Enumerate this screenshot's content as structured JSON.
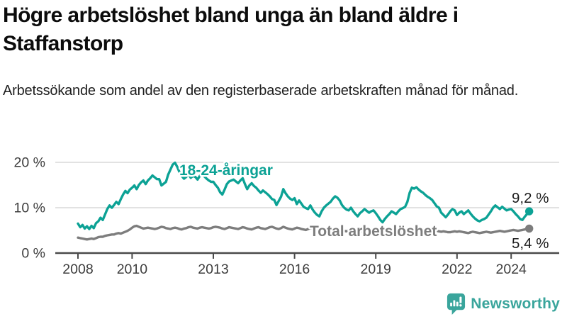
{
  "header": {
    "title": "Högre arbetslöshet bland unga än bland äldre i Staffanstorp",
    "subtitle": "Arbetssökande som andel av den registerbaserade arbetskraften månad för månad."
  },
  "chart_data": {
    "type": "line",
    "title": "Högre arbetslöshet bland unga än bland äldre i Staffanstorp",
    "subtitle": "Arbetssökande som andel av den registerbaserade arbetskraften månad för månad.",
    "unit": "%",
    "x_start_month": "2008-01",
    "x_end_month": "2024-09",
    "x_step": "1 month",
    "x_ticks": [
      "2008",
      "2010",
      "2013",
      "2016",
      "2019",
      "2022",
      "2024"
    ],
    "y_ticks": [
      {
        "value": 0,
        "label": "0 %"
      },
      {
        "value": 10,
        "label": "10 %"
      },
      {
        "value": 20,
        "label": "20 %"
      }
    ],
    "ylim": [
      0,
      21.5
    ],
    "grid": true,
    "legend_position": "inline-labels",
    "colors": {
      "youth": "#0ca295",
      "total": "#7d7d7d",
      "axis": "#4a4a4a",
      "tick_label": "#3d3d3d",
      "gridline": "#d9d9d9",
      "value_label": "#1b1b1b"
    },
    "series": [
      {
        "name": "18-24-åringar",
        "color": "#0ca295",
        "end_label": "9,2 %",
        "end_value": 9.2,
        "values": [
          6.5,
          5.7,
          6.2,
          5.4,
          5.9,
          5.3,
          6.0,
          5.5,
          6.6,
          7.0,
          7.8,
          7.3,
          8.5,
          9.7,
          10.5,
          10.0,
          10.6,
          11.3,
          10.8,
          11.9,
          12.9,
          13.7,
          13.2,
          14.0,
          14.4,
          14.9,
          14.1,
          15.0,
          15.6,
          16.0,
          15.2,
          16.0,
          16.5,
          17.1,
          16.7,
          16.3,
          16.3,
          14.9,
          15.3,
          15.7,
          17.3,
          18.4,
          19.5,
          19.9,
          19.0,
          17.8,
          17.0,
          16.4,
          16.8,
          17.4,
          16.6,
          17.0,
          16.8,
          16.2,
          17.0,
          17.5,
          16.9,
          16.4,
          16.0,
          15.7,
          15.7,
          15.0,
          14.4,
          13.4,
          12.9,
          14.0,
          15.2,
          15.8,
          16.0,
          16.2,
          15.8,
          15.4,
          16.0,
          16.5,
          15.2,
          14.1,
          14.9,
          15.4,
          14.8,
          14.4,
          13.8,
          13.3,
          13.8,
          13.4,
          13.0,
          12.5,
          11.9,
          11.7,
          10.6,
          11.5,
          12.4,
          14.1,
          13.2,
          12.5,
          12.0,
          11.7,
          12.1,
          10.8,
          11.6,
          10.9,
          10.2,
          9.9,
          9.7,
          10.5,
          9.6,
          8.9,
          8.4,
          8.1,
          9.2,
          10.0,
          10.5,
          10.9,
          11.3,
          12.0,
          12.5,
          12.2,
          11.6,
          10.6,
          10.0,
          9.6,
          9.4,
          10.0,
          9.2,
          8.6,
          8.1,
          8.8,
          9.2,
          9.7,
          9.3,
          8.9,
          9.2,
          9.4,
          8.8,
          8.1,
          7.3,
          6.8,
          7.5,
          8.1,
          8.6,
          9.2,
          8.9,
          8.6,
          9.2,
          9.7,
          9.9,
          10.2,
          11.3,
          13.3,
          14.4,
          14.2,
          14.5,
          14.0,
          13.6,
          13.3,
          12.8,
          12.4,
          12.1,
          11.7,
          11.0,
          10.3,
          10.0,
          8.9,
          8.4,
          7.9,
          8.5,
          9.2,
          9.7,
          9.4,
          8.4,
          8.9,
          9.2,
          8.6,
          9.0,
          9.4,
          8.7,
          8.1,
          7.6,
          7.2,
          7.0,
          7.3,
          7.5,
          7.8,
          8.5,
          9.2,
          10.0,
          10.5,
          10.1,
          9.7,
          10.2,
          9.8,
          9.4,
          9.6,
          9.7,
          9.2,
          8.6,
          8.1,
          7.5,
          7.3,
          8.0,
          8.6,
          9.2
        ]
      },
      {
        "name": "Total arbetslöshet",
        "color": "#7d7d7d",
        "end_label": "5,4 %",
        "end_value": 5.4,
        "values": [
          3.4,
          3.3,
          3.2,
          3.1,
          3.0,
          3.1,
          3.2,
          3.1,
          3.3,
          3.5,
          3.6,
          3.6,
          3.8,
          3.9,
          4.0,
          4.1,
          4.1,
          4.3,
          4.4,
          4.3,
          4.5,
          4.7,
          4.9,
          5.2,
          5.6,
          5.9,
          6.0,
          5.8,
          5.6,
          5.4,
          5.5,
          5.6,
          5.5,
          5.4,
          5.3,
          5.4,
          5.6,
          5.8,
          5.7,
          5.5,
          5.4,
          5.3,
          5.5,
          5.6,
          5.5,
          5.3,
          5.2,
          5.4,
          5.5,
          5.7,
          5.8,
          5.6,
          5.5,
          5.4,
          5.6,
          5.7,
          5.6,
          5.5,
          5.4,
          5.5,
          5.7,
          5.8,
          5.7,
          5.6,
          5.4,
          5.3,
          5.5,
          5.7,
          5.6,
          5.5,
          5.4,
          5.3,
          5.5,
          5.7,
          5.6,
          5.4,
          5.3,
          5.2,
          5.4,
          5.6,
          5.7,
          5.5,
          5.4,
          5.3,
          5.5,
          5.7,
          5.8,
          5.6,
          5.4,
          5.3,
          5.5,
          5.8,
          5.6,
          5.4,
          5.3,
          5.2,
          5.4,
          5.6,
          5.5,
          5.3,
          5.2,
          5.1,
          5.3,
          5.5,
          5.4,
          5.2,
          5.1,
          5.0,
          5.2,
          5.3,
          5.2,
          5.1,
          5.0,
          4.9,
          5.1,
          5.3,
          5.2,
          5.0,
          4.9,
          4.8,
          5.0,
          5.1,
          5.0,
          4.8,
          4.7,
          4.6,
          4.8,
          5.0,
          4.9,
          4.7,
          4.6,
          4.5,
          4.7,
          4.8,
          4.6,
          4.5,
          4.4,
          4.3,
          4.5,
          4.7,
          4.6,
          4.5,
          4.6,
          4.7,
          4.8,
          4.9,
          5.0,
          5.2,
          5.3,
          5.2,
          5.3,
          5.2,
          5.1,
          5.0,
          4.9,
          4.9,
          5.0,
          5.1,
          5.0,
          4.9,
          4.8,
          4.7,
          4.8,
          4.7,
          4.6,
          4.6,
          4.7,
          4.8,
          4.7,
          4.8,
          4.7,
          4.6,
          4.5,
          4.4,
          4.6,
          4.7,
          4.6,
          4.5,
          4.4,
          4.5,
          4.6,
          4.7,
          4.6,
          4.5,
          4.6,
          4.7,
          4.8,
          4.9,
          4.8,
          4.7,
          4.8,
          4.9,
          5.0,
          5.1,
          5.0,
          4.9,
          5.0,
          5.1,
          5.2,
          5.3,
          5.4
        ]
      }
    ]
  },
  "footer": {
    "brand": "Newsworthy",
    "logo_icon": "bar-chart-speech-bubble-icon",
    "brand_color": "#3aa59c"
  }
}
